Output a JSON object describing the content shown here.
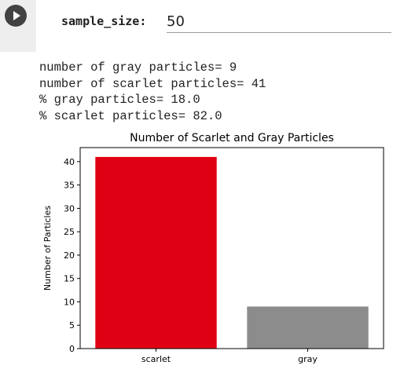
{
  "cell": {
    "run_icon": "play-icon",
    "param_label": "sample_size:",
    "param_value": "50"
  },
  "output_lines": [
    "number of gray particles= 9",
    "number of scarlet particles= 41",
    "% gray particles= 18.0",
    "% scarlet particles= 82.0"
  ],
  "chart_data": {
    "type": "bar",
    "title": "Number of Scarlet and Gray Particles",
    "xlabel": "",
    "ylabel": "Number of Particles",
    "categories": [
      "scarlet",
      "gray"
    ],
    "values": [
      41,
      9
    ],
    "colors": [
      "#e00013",
      "#8b8c8b"
    ],
    "ylim": [
      0,
      43
    ],
    "yticks": [
      0,
      5,
      10,
      15,
      20,
      25,
      30,
      35,
      40
    ],
    "grid": false
  }
}
